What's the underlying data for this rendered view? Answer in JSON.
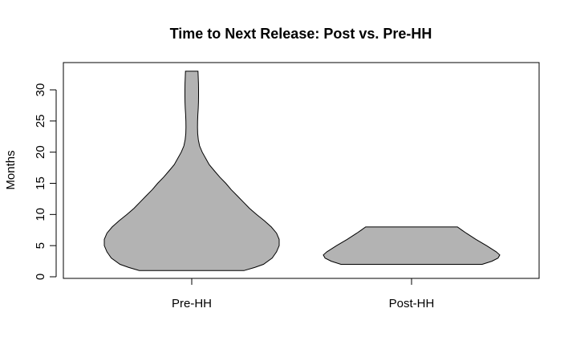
{
  "chart_data": {
    "type": "violin",
    "title": "Time to Next Release: Post vs. Pre-HH",
    "xlabel": "",
    "ylabel": "Months",
    "ylim": [
      0,
      33
    ],
    "yticks": [
      0,
      5,
      10,
      15,
      20,
      25,
      30
    ],
    "categories": [
      "Pre-HH",
      "Post-HH"
    ],
    "fill_color": "#b3b3b3",
    "stroke_color": "#000000",
    "grid": false,
    "legend": "none",
    "series": [
      {
        "category": "Pre-HH",
        "min": 1,
        "max": 33,
        "density_profile": [
          [
            1,
            0.6
          ],
          [
            1.5,
            0.72
          ],
          [
            2,
            0.82
          ],
          [
            3,
            0.92
          ],
          [
            4,
            0.97
          ],
          [
            5,
            1.0
          ],
          [
            6,
            1.0
          ],
          [
            7,
            0.97
          ],
          [
            8,
            0.91
          ],
          [
            9,
            0.83
          ],
          [
            10,
            0.74
          ],
          [
            11,
            0.66
          ],
          [
            12,
            0.59
          ],
          [
            13,
            0.52
          ],
          [
            14,
            0.45
          ],
          [
            15,
            0.39
          ],
          [
            16,
            0.32
          ],
          [
            17,
            0.26
          ],
          [
            18,
            0.2
          ],
          [
            19,
            0.16
          ],
          [
            20,
            0.12
          ],
          [
            21,
            0.09
          ],
          [
            22,
            0.075
          ],
          [
            23,
            0.068
          ],
          [
            24,
            0.066
          ],
          [
            25,
            0.067
          ],
          [
            26,
            0.07
          ],
          [
            27,
            0.074
          ],
          [
            28,
            0.077
          ],
          [
            29,
            0.078
          ],
          [
            30,
            0.078
          ],
          [
            31,
            0.077
          ],
          [
            32,
            0.074
          ],
          [
            33,
            0.072
          ]
        ]
      },
      {
        "category": "Post-HH",
        "min": 2,
        "max": 8,
        "density_profile": [
          [
            2,
            0.8
          ],
          [
            2.5,
            0.91
          ],
          [
            3,
            0.98
          ],
          [
            3.5,
            1.0
          ],
          [
            4,
            0.96
          ],
          [
            5,
            0.85
          ],
          [
            6,
            0.73
          ],
          [
            7,
            0.62
          ],
          [
            7.5,
            0.57
          ],
          [
            8,
            0.52
          ]
        ]
      }
    ]
  }
}
